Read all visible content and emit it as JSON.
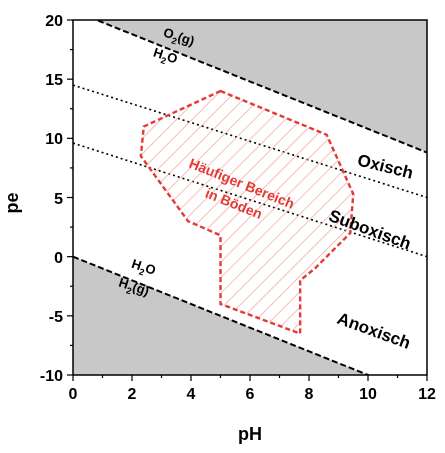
{
  "chart_data": {
    "type": "line",
    "title": "",
    "xlabel": "pH",
    "ylabel": "pe",
    "xlim": [
      0,
      12
    ],
    "ylim": [
      -10,
      20
    ],
    "x_ticks": [
      "0",
      "2",
      "4",
      "6",
      "8",
      "10",
      "12"
    ],
    "y_ticks": [
      "-10",
      "-5",
      "0",
      "5",
      "10",
      "15",
      "20"
    ],
    "grid": false,
    "colors": {
      "stability_limit": "#000000",
      "unstable_fill": "#c8c8c8",
      "soil_region": "#e53935"
    },
    "boundaries": [
      {
        "id": "upper",
        "style": "dashed",
        "points": [
          [
            0,
            20.8
          ],
          [
            12,
            8.8
          ]
        ],
        "upper_label": "O2(g)",
        "lower_label": "H2O"
      },
      {
        "id": "lower",
        "style": "dashed",
        "points": [
          [
            0,
            0
          ],
          [
            12,
            -12
          ]
        ],
        "upper_label": "H2O",
        "lower_label": "H2(g)"
      },
      {
        "id": "oxic-suboxic",
        "style": "dotted",
        "points": [
          [
            0,
            14.5
          ],
          [
            12,
            5.0
          ]
        ]
      },
      {
        "id": "suboxic-anoxic",
        "style": "dotted",
        "points": [
          [
            0,
            9.6
          ],
          [
            12,
            0.0
          ]
        ]
      }
    ],
    "soil_region": {
      "label_line1": "Häufiger Bereich",
      "label_line2": "in Böden",
      "polygon": [
        [
          5.0,
          14.0
        ],
        [
          8.6,
          10.3
        ],
        [
          9.5,
          5.3
        ],
        [
          9.4,
          2.0
        ],
        [
          8.2,
          -1.0
        ],
        [
          7.7,
          -2.0
        ],
        [
          7.7,
          -6.5
        ],
        [
          5.0,
          -4.0
        ],
        [
          5.0,
          1.8
        ],
        [
          3.9,
          3.0
        ],
        [
          2.3,
          8.5
        ],
        [
          2.4,
          11.0
        ]
      ]
    },
    "regions": [
      "Oxisch",
      "Suboxisch",
      "Anoxisch"
    ]
  }
}
